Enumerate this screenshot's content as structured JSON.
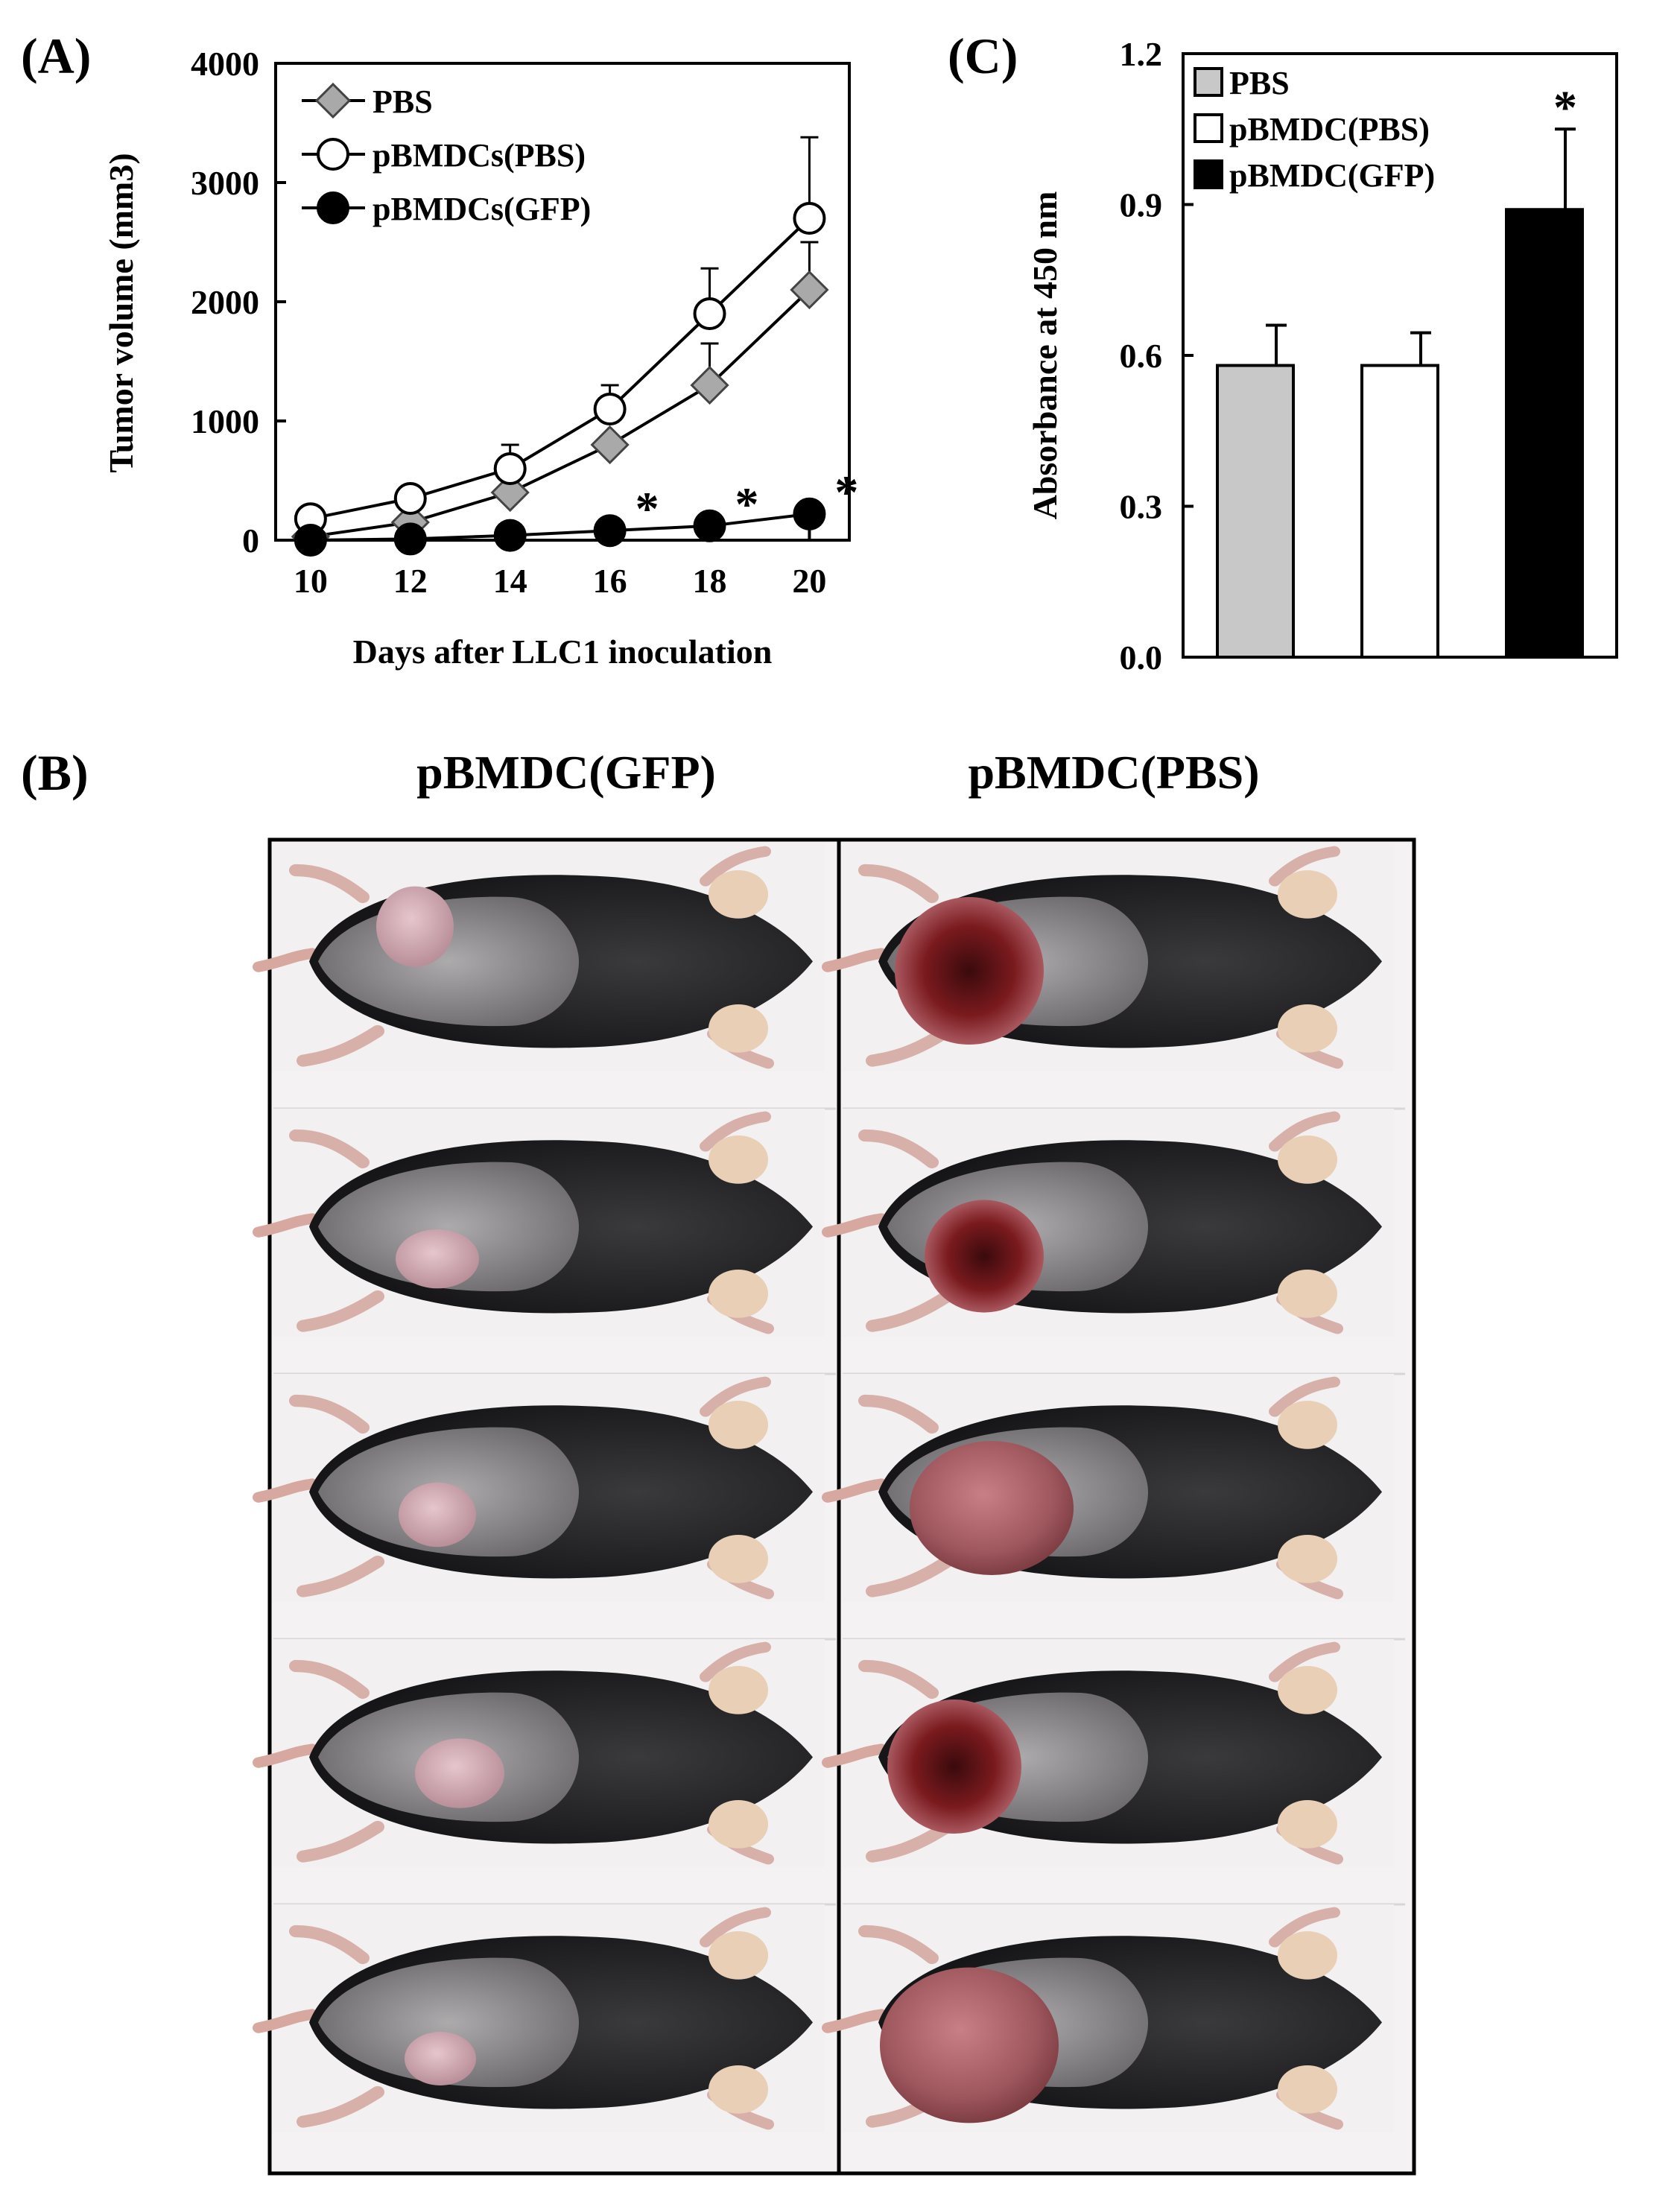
{
  "panels": {
    "a": "(A)",
    "b": "(B)",
    "c": "(C)"
  },
  "chart_data": [
    {
      "id": "A",
      "type": "line",
      "xlabel": "Days after LLC1 inoculation",
      "ylabel": "Tumor volume (mm3)",
      "x": [
        10,
        12,
        14,
        16,
        18,
        20
      ],
      "xticks": [
        "10",
        "12",
        "14",
        "16",
        "18",
        "20"
      ],
      "yticks": [
        "0",
        "1000",
        "2000",
        "3000",
        "4000"
      ],
      "xlim": [
        9.3,
        20.8
      ],
      "ylim": [
        0,
        4000
      ],
      "legend_position": "top-left",
      "series": [
        {
          "name": "PBS",
          "marker": "diamond",
          "color": "#a9a9a9",
          "values": [
            30,
            150,
            400,
            800,
            1300,
            2100
          ],
          "errors": [
            0,
            0,
            0,
            0,
            350,
            400
          ]
        },
        {
          "name": "pBMDCs(PBS)",
          "marker": "circle-open",
          "color": "#ffffff",
          "values": [
            180,
            350,
            600,
            1100,
            1900,
            2700
          ],
          "errors": [
            0,
            0,
            200,
            200,
            380,
            680
          ]
        },
        {
          "name": "pBMDCs(GFP)",
          "marker": "circle-filled",
          "color": "#000000",
          "values": [
            0,
            10,
            40,
            80,
            120,
            220
          ],
          "errors": [
            0,
            0,
            0,
            0,
            0,
            0
          ]
        }
      ],
      "significance": [
        {
          "x": 16,
          "label": "*"
        },
        {
          "x": 18,
          "label": "*"
        },
        {
          "x": 20,
          "label": "*"
        }
      ]
    },
    {
      "id": "C",
      "type": "bar",
      "ylabel": "Absorbance at 450 nm",
      "categories": [
        "PBS",
        "pBMDC(PBS)",
        "pBMDC(GFP)"
      ],
      "values": [
        0.58,
        0.58,
        0.89
      ],
      "errors": [
        0.08,
        0.065,
        0.16
      ],
      "colors": [
        "#c8c8c8",
        "#ffffff",
        "#000000"
      ],
      "yticks": [
        "0.0",
        "0.3",
        "0.6",
        "0.9",
        "1.2"
      ],
      "ylim": [
        0,
        1.2
      ],
      "legend_position": "top-left",
      "significance": [
        {
          "category": "pBMDC(GFP)",
          "label": "*"
        }
      ]
    }
  ],
  "photo_panel": {
    "columns": [
      "pBMDC(GFP)",
      "pBMDC(PBS)"
    ],
    "rows": 5
  }
}
